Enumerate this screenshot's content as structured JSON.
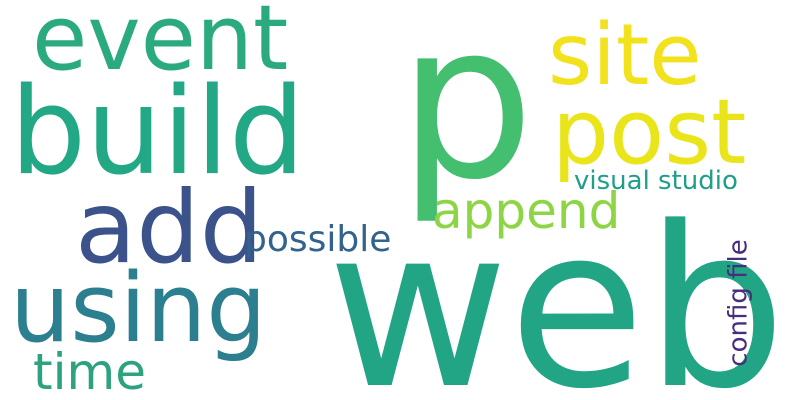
{
  "words": [
    {
      "id": "p",
      "text": "p",
      "color": "#44bf70"
    },
    {
      "id": "web",
      "text": "web",
      "color": "#21a585"
    },
    {
      "id": "build",
      "text": "build",
      "color": "#22a884"
    },
    {
      "id": "event",
      "text": "event",
      "color": "#2aaa7e"
    },
    {
      "id": "add",
      "text": "add",
      "color": "#3b528b"
    },
    {
      "id": "using",
      "text": "using",
      "color": "#2c7f8e"
    },
    {
      "id": "site",
      "text": "site",
      "color": "#f2e11d"
    },
    {
      "id": "post",
      "text": "post",
      "color": "#e9e51a"
    },
    {
      "id": "append",
      "text": "append",
      "color": "#8dd544"
    },
    {
      "id": "possible",
      "text": "possible",
      "color": "#33638d"
    },
    {
      "id": "time",
      "text": "time",
      "color": "#2ca27f"
    },
    {
      "id": "visual",
      "text": "visual studio",
      "color": "#1f9e89"
    },
    {
      "id": "config",
      "text": "config file",
      "color": "#472d7b"
    }
  ]
}
